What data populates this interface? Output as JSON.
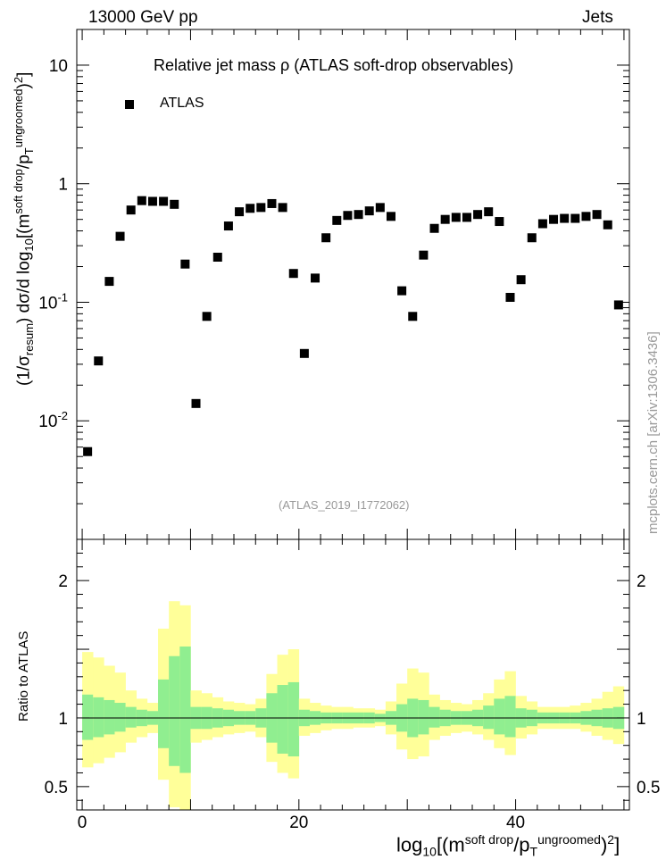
{
  "header": {
    "energy_label": "13000 GeV pp",
    "category_label": "Jets"
  },
  "plot_title": "Relative jet mass  ρ (ATLAS soft-drop observables)",
  "legend": {
    "label": "ATLAS"
  },
  "analysis_tag": "(ATLAS_2019_I1772062)",
  "credit": "mcplots.cern.ch [arXiv:1306.3436]",
  "main_ylabel": {
    "prefix": "(1/σ",
    "sub1": "resum",
    "mid": ") dσ/d log",
    "sub2": "10",
    "mid2": "[(m",
    "sup1": "soft drop",
    "mid3": "/p",
    "sub3": "T",
    "sup2": "ungroomed",
    "mid4": ")",
    "sup3": "2",
    "suffix": "]"
  },
  "ratio_ylabel": "Ratio to ATLAS",
  "xlabel": {
    "prefix": "log",
    "sub1": "10",
    "mid": "[(m",
    "sup1": "soft drop",
    "mid2": "/p",
    "sub2": "T",
    "sup2": "ungroomed",
    "mid3": ")",
    "sup3": "2",
    "suffix": "]"
  },
  "chart_data": {
    "type": "scatter",
    "main_panel": {
      "yscale": "log",
      "xlim": [
        -0.5,
        50.5
      ],
      "ylim": [
        0.001,
        20
      ],
      "ytick_labels": [
        "10",
        "1",
        "10^-1",
        "10^-2"
      ],
      "ytick_values": [
        10,
        1,
        0.1,
        0.01
      ],
      "series": [
        {
          "name": "ATLAS",
          "x": [
            0.5,
            1.5,
            2.5,
            3.5,
            4.5,
            5.5,
            6.5,
            7.5,
            8.5,
            9.5,
            10.5,
            11.5,
            12.5,
            13.5,
            14.5,
            15.5,
            16.5,
            17.5,
            18.5,
            19.5,
            20.5,
            21.5,
            22.5,
            23.5,
            24.5,
            25.5,
            26.5,
            27.5,
            28.5,
            29.5,
            30.5,
            31.5,
            32.5,
            33.5,
            34.5,
            35.5,
            36.5,
            37.5,
            38.5,
            39.5,
            40.5,
            41.5,
            42.5,
            43.5,
            44.5,
            45.5,
            46.5,
            47.5,
            48.5,
            49.5
          ],
          "y": [
            0.0055,
            0.032,
            0.15,
            0.36,
            0.6,
            0.72,
            0.71,
            0.71,
            0.67,
            0.21,
            0.014,
            0.076,
            0.24,
            0.44,
            0.58,
            0.62,
            0.63,
            0.68,
            0.63,
            0.175,
            0.037,
            0.16,
            0.35,
            0.49,
            0.54,
            0.55,
            0.59,
            0.63,
            0.53,
            0.125,
            0.076,
            0.25,
            0.42,
            0.5,
            0.52,
            0.52,
            0.55,
            0.58,
            0.48,
            0.11,
            0.155,
            0.35,
            0.46,
            0.5,
            0.51,
            0.51,
            0.53,
            0.55,
            0.45,
            0.095
          ]
        }
      ]
    },
    "ratio_panel": {
      "ylim": [
        0.33,
        2.3
      ],
      "ytick_labels": [
        "0.5",
        "1",
        "2"
      ],
      "ytick_values": [
        0.5,
        1,
        2
      ],
      "reference_line": 1,
      "band_colors": {
        "inner": "#90ee90",
        "outer": "#ffff99"
      },
      "inner_band": {
        "low": [
          0.84,
          0.86,
          0.88,
          0.9,
          0.93,
          0.94,
          0.95,
          0.78,
          0.65,
          0.6,
          0.92,
          0.92,
          0.93,
          0.94,
          0.95,
          0.95,
          0.93,
          0.82,
          0.74,
          0.72,
          0.94,
          0.95,
          0.96,
          0.96,
          0.96,
          0.96,
          0.96,
          0.97,
          0.95,
          0.9,
          0.86,
          0.88,
          0.93,
          0.94,
          0.95,
          0.95,
          0.94,
          0.92,
          0.88,
          0.86,
          0.93,
          0.94,
          0.96,
          0.96,
          0.96,
          0.96,
          0.95,
          0.94,
          0.93,
          0.92
        ],
        "high": [
          1.17,
          1.15,
          1.13,
          1.11,
          1.08,
          1.06,
          1.05,
          1.28,
          1.45,
          1.52,
          1.08,
          1.08,
          1.07,
          1.06,
          1.05,
          1.05,
          1.07,
          1.18,
          1.24,
          1.26,
          1.06,
          1.05,
          1.04,
          1.04,
          1.04,
          1.04,
          1.04,
          1.03,
          1.05,
          1.1,
          1.14,
          1.13,
          1.08,
          1.06,
          1.05,
          1.05,
          1.06,
          1.09,
          1.14,
          1.16,
          1.07,
          1.06,
          1.04,
          1.04,
          1.04,
          1.04,
          1.05,
          1.06,
          1.07,
          1.08
        ]
      },
      "outer_band": {
        "low": [
          0.64,
          0.67,
          0.71,
          0.75,
          0.82,
          0.86,
          0.89,
          0.55,
          0.35,
          0.33,
          0.82,
          0.84,
          0.86,
          0.88,
          0.89,
          0.9,
          0.86,
          0.68,
          0.6,
          0.56,
          0.87,
          0.89,
          0.91,
          0.92,
          0.92,
          0.93,
          0.93,
          0.94,
          0.88,
          0.77,
          0.7,
          0.72,
          0.84,
          0.87,
          0.89,
          0.9,
          0.88,
          0.84,
          0.78,
          0.73,
          0.85,
          0.88,
          0.92,
          0.92,
          0.92,
          0.92,
          0.9,
          0.87,
          0.84,
          0.81
        ],
        "high": [
          1.48,
          1.44,
          1.38,
          1.33,
          1.2,
          1.14,
          1.11,
          1.65,
          1.85,
          1.82,
          1.2,
          1.18,
          1.15,
          1.12,
          1.11,
          1.1,
          1.14,
          1.32,
          1.46,
          1.5,
          1.14,
          1.11,
          1.09,
          1.08,
          1.08,
          1.07,
          1.07,
          1.06,
          1.12,
          1.25,
          1.36,
          1.33,
          1.17,
          1.13,
          1.11,
          1.1,
          1.13,
          1.18,
          1.28,
          1.34,
          1.16,
          1.12,
          1.08,
          1.08,
          1.08,
          1.09,
          1.11,
          1.14,
          1.19,
          1.23
        ]
      }
    },
    "x_axis": {
      "tick_labels": [
        "0",
        "20",
        "40"
      ],
      "tick_values": [
        0,
        20,
        40
      ]
    }
  }
}
